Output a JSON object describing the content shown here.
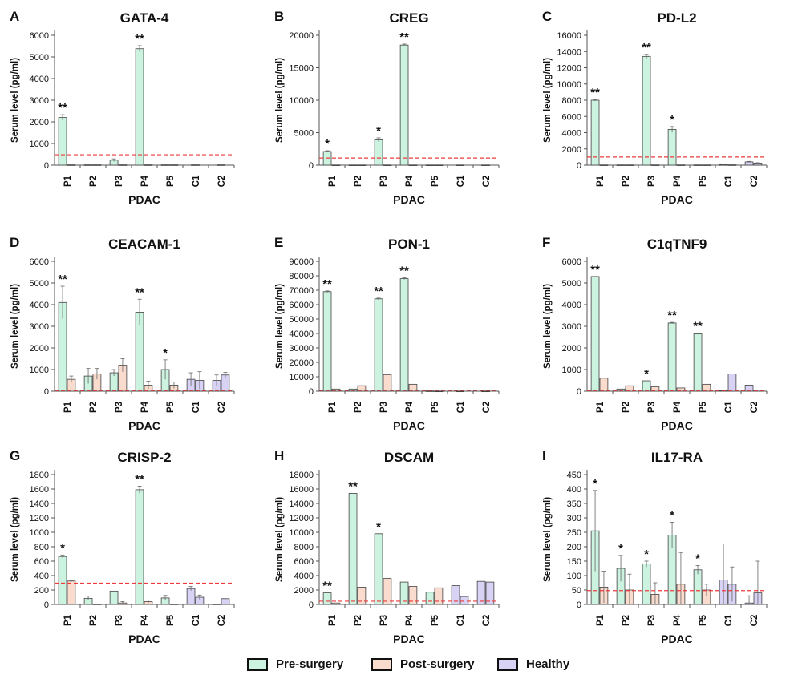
{
  "colors": {
    "pre": "#ccf2e0",
    "post": "#fadccf",
    "healthy": "#d8d2f4",
    "threshold": "#ee3b3b",
    "bar_edge": "#444444",
    "axis": "#555555"
  },
  "legend": {
    "pre_label": "Pre-surgery",
    "post_label": "Post-surgery",
    "healthy_label": "Healthy"
  },
  "chart_data": [
    {
      "type": "bar",
      "panel": "A",
      "title": "GATA-4",
      "ylabel": "Serum level (pg/ml)",
      "xlabel": "PDAC",
      "ylim": [
        0,
        6000
      ],
      "yticks": [
        0,
        1000,
        2000,
        3000,
        4000,
        5000,
        6000
      ],
      "threshold": 480,
      "categories": [
        "P1",
        "P2",
        "P3",
        "P4",
        "P5",
        "C1",
        "C2"
      ],
      "series": [
        {
          "group": "pre",
          "values": [
            2200,
            15,
            230,
            5380,
            15,
            null,
            null
          ],
          "errors": [
            130,
            0,
            60,
            140,
            0,
            null,
            null
          ]
        },
        {
          "group": "post",
          "values": [
            15,
            15,
            15,
            15,
            15,
            null,
            null
          ],
          "errors": [
            0,
            0,
            0,
            0,
            0,
            null,
            null
          ]
        },
        {
          "group": "healthy",
          "values": [
            null,
            null,
            null,
            null,
            null,
            15,
            15
          ],
          "errors": [
            null,
            null,
            null,
            null,
            null,
            0,
            0
          ]
        }
      ],
      "annotations": [
        {
          "category": "P1",
          "text": "**"
        },
        {
          "category": "P4",
          "text": "**"
        }
      ]
    },
    {
      "type": "bar",
      "panel": "B",
      "title": "CREG",
      "ylabel": "Serum level (pg/ml)",
      "xlabel": "PDAC",
      "ylim": [
        0,
        20000
      ],
      "yticks": [
        0,
        5000,
        10000,
        15000,
        20000
      ],
      "threshold": 1100,
      "categories": [
        "P1",
        "P2",
        "P3",
        "P4",
        "P5",
        "C1",
        "C2"
      ],
      "series": [
        {
          "group": "pre",
          "values": [
            2100,
            30,
            3900,
            18500,
            30,
            null,
            null
          ],
          "errors": [
            120,
            0,
            300,
            150,
            0,
            null,
            null
          ]
        },
        {
          "group": "post",
          "values": [
            30,
            30,
            30,
            30,
            30,
            null,
            null
          ],
          "errors": [
            0,
            0,
            0,
            0,
            0,
            null,
            null
          ]
        },
        {
          "group": "healthy",
          "values": [
            null,
            null,
            null,
            null,
            null,
            30,
            30
          ],
          "errors": [
            null,
            null,
            null,
            null,
            null,
            0,
            0
          ]
        }
      ],
      "annotations": [
        {
          "category": "P1",
          "text": "*"
        },
        {
          "category": "P3",
          "text": "*"
        },
        {
          "category": "P4",
          "text": "**"
        }
      ]
    },
    {
      "type": "bar",
      "panel": "C",
      "title": "PD-L2",
      "ylabel": "Serum level (pg/ml)",
      "xlabel": "PDAC",
      "ylim": [
        0,
        16000
      ],
      "yticks": [
        0,
        2000,
        4000,
        6000,
        8000,
        10000,
        12000,
        14000,
        16000
      ],
      "threshold": 1000,
      "categories": [
        "P1",
        "P2",
        "P3",
        "P4",
        "P5",
        "C1",
        "C2"
      ],
      "series": [
        {
          "group": "pre",
          "values": [
            8000,
            30,
            13400,
            4400,
            30,
            null,
            null
          ],
          "errors": [
            100,
            0,
            250,
            350,
            0,
            null,
            null
          ]
        },
        {
          "group": "post",
          "values": [
            30,
            30,
            30,
            30,
            30,
            null,
            null
          ],
          "errors": [
            0,
            0,
            0,
            0,
            0,
            null,
            null
          ]
        },
        {
          "group": "healthy",
          "values": [
            null,
            null,
            null,
            null,
            null,
            60,
            400
          ],
          "errors": [
            null,
            null,
            null,
            null,
            null,
            20,
            60
          ]
        },
        {
          "group": "healthy",
          "values": [
            null,
            null,
            null,
            null,
            null,
            40,
            250
          ],
          "errors": [
            null,
            null,
            null,
            null,
            null,
            15,
            50
          ]
        }
      ],
      "annotations": [
        {
          "category": "P1",
          "text": "**"
        },
        {
          "category": "P3",
          "text": "**"
        },
        {
          "category": "P4",
          "text": "*"
        }
      ]
    },
    {
      "type": "bar",
      "panel": "D",
      "title": "CEACAM-1",
      "ylabel": "Serum level (pg/ml)",
      "xlabel": "PDAC",
      "ylim": [
        0,
        6000
      ],
      "yticks": [
        0,
        1000,
        2000,
        3000,
        4000,
        5000,
        6000
      ],
      "threshold": 30,
      "categories": [
        "P1",
        "P2",
        "P3",
        "P4",
        "P5",
        "C1",
        "C2"
      ],
      "series": [
        {
          "group": "pre",
          "values": [
            4100,
            700,
            850,
            3650,
            1000,
            null,
            null
          ],
          "errors": [
            750,
            350,
            150,
            600,
            450,
            null,
            null
          ]
        },
        {
          "group": "post",
          "values": [
            550,
            800,
            1200,
            280,
            280,
            null,
            null
          ],
          "errors": [
            150,
            250,
            300,
            180,
            150,
            null,
            null
          ]
        },
        {
          "group": "healthy",
          "values": [
            null,
            null,
            null,
            null,
            null,
            550,
            500
          ],
          "errors": [
            null,
            null,
            null,
            null,
            null,
            300,
            250
          ]
        },
        {
          "group": "healthy",
          "values": [
            null,
            null,
            null,
            null,
            null,
            500,
            750
          ],
          "errors": [
            null,
            null,
            null,
            null,
            null,
            400,
            120
          ]
        }
      ],
      "annotations": [
        {
          "category": "P1",
          "text": "**"
        },
        {
          "category": "P4",
          "text": "**"
        },
        {
          "category": "P5",
          "text": "*"
        }
      ]
    },
    {
      "type": "bar",
      "panel": "E",
      "title": "PON-1",
      "ylabel": "Serum level (pg/ml)",
      "xlabel": "PDAC",
      "ylim": [
        0,
        90000
      ],
      "yticks": [
        0,
        10000,
        20000,
        30000,
        40000,
        50000,
        60000,
        70000,
        80000,
        90000
      ],
      "threshold": 600,
      "categories": [
        "P1",
        "P2",
        "P3",
        "P4",
        "P5",
        "C1",
        "C2"
      ],
      "series": [
        {
          "group": "pre",
          "values": [
            69000,
            1500,
            64000,
            78000,
            200,
            null,
            null
          ],
          "errors": [
            500,
            0,
            500,
            600,
            0,
            null,
            null
          ]
        },
        {
          "group": "post",
          "values": [
            1500,
            3800,
            11500,
            4800,
            100,
            null,
            null
          ],
          "errors": [
            0,
            0,
            0,
            0,
            0,
            null,
            null
          ]
        },
        {
          "group": "healthy",
          "values": [
            null,
            null,
            null,
            null,
            null,
            100,
            100
          ],
          "errors": [
            null,
            null,
            null,
            null,
            null,
            0,
            0
          ]
        }
      ],
      "annotations": [
        {
          "category": "P1",
          "text": "**"
        },
        {
          "category": "P3",
          "text": "**"
        },
        {
          "category": "P4",
          "text": "**"
        }
      ]
    },
    {
      "type": "bar",
      "panel": "F",
      "title": "C1qTNF9",
      "ylabel": "Serum level (pg/ml)",
      "xlabel": "PDAC",
      "ylim": [
        0,
        6000
      ],
      "yticks": [
        0,
        1000,
        2000,
        3000,
        4000,
        5000,
        6000
      ],
      "threshold": 30,
      "categories": [
        "P1",
        "P2",
        "P3",
        "P4",
        "P5",
        "C1",
        "C2"
      ],
      "series": [
        {
          "group": "pre",
          "values": [
            5300,
            100,
            480,
            3150,
            2650,
            null,
            null
          ],
          "errors": [
            0,
            0,
            0,
            30,
            30,
            null,
            null
          ]
        },
        {
          "group": "post",
          "values": [
            600,
            250,
            200,
            150,
            320,
            null,
            null
          ],
          "errors": [
            0,
            0,
            0,
            0,
            0,
            null,
            null
          ]
        },
        {
          "group": "healthy",
          "values": [
            null,
            null,
            null,
            null,
            null,
            30,
            280
          ],
          "errors": [
            null,
            null,
            null,
            null,
            null,
            0,
            0
          ]
        },
        {
          "group": "healthy",
          "values": [
            null,
            null,
            null,
            null,
            null,
            800,
            50
          ],
          "errors": [
            null,
            null,
            null,
            null,
            null,
            0,
            0
          ]
        }
      ],
      "annotations": [
        {
          "category": "P1",
          "text": "**"
        },
        {
          "category": "P3",
          "text": "*"
        },
        {
          "category": "P4",
          "text": "**"
        },
        {
          "category": "P5",
          "text": "**"
        }
      ]
    },
    {
      "type": "bar",
      "panel": "G",
      "title": "CRISP-2",
      "ylabel": "Serum level (pg/ml)",
      "xlabel": "PDAC",
      "ylim": [
        0,
        1800
      ],
      "yticks": [
        0,
        200,
        400,
        600,
        800,
        1000,
        1200,
        1400,
        1600,
        1800
      ],
      "threshold": 295,
      "categories": [
        "P1",
        "P2",
        "P3",
        "P4",
        "P5",
        "C1",
        "C2"
      ],
      "series": [
        {
          "group": "pre",
          "values": [
            665,
            85,
            185,
            1590,
            90,
            null,
            null
          ],
          "errors": [
            20,
            30,
            0,
            50,
            35,
            null,
            null
          ]
        },
        {
          "group": "post",
          "values": [
            325,
            5,
            20,
            40,
            5,
            null,
            null
          ],
          "errors": [
            10,
            0,
            20,
            20,
            0,
            null,
            null
          ]
        },
        {
          "group": "healthy",
          "values": [
            null,
            null,
            null,
            null,
            null,
            220,
            5
          ],
          "errors": [
            null,
            null,
            null,
            null,
            null,
            30,
            0
          ]
        },
        {
          "group": "healthy",
          "values": [
            null,
            null,
            null,
            null,
            null,
            100,
            80
          ],
          "errors": [
            null,
            null,
            null,
            null,
            null,
            30,
            0
          ]
        }
      ],
      "annotations": [
        {
          "category": "P1",
          "text": "*"
        },
        {
          "category": "P4",
          "text": "**"
        }
      ]
    },
    {
      "type": "bar",
      "panel": "H",
      "title": "DSCAM",
      "ylabel": "Serum level (pg/ml)",
      "xlabel": "PDAC",
      "ylim": [
        0,
        18000
      ],
      "yticks": [
        0,
        2000,
        4000,
        6000,
        8000,
        10000,
        12000,
        14000,
        16000,
        18000
      ],
      "threshold": 450,
      "categories": [
        "P1",
        "P2",
        "P3",
        "P4",
        "P5",
        "C1",
        "C2"
      ],
      "series": [
        {
          "group": "pre",
          "values": [
            1600,
            15400,
            9800,
            3100,
            1700,
            null,
            null
          ],
          "errors": [
            0,
            0,
            0,
            0,
            0,
            null,
            null
          ]
        },
        {
          "group": "post",
          "values": [
            200,
            2400,
            3600,
            2500,
            2300,
            null,
            null
          ],
          "errors": [
            0,
            0,
            0,
            0,
            0,
            null,
            null
          ]
        },
        {
          "group": "healthy",
          "values": [
            null,
            null,
            null,
            null,
            null,
            2600,
            3200
          ],
          "errors": [
            null,
            null,
            null,
            null,
            null,
            0,
            0
          ]
        },
        {
          "group": "healthy",
          "values": [
            null,
            null,
            null,
            null,
            null,
            1100,
            3100
          ],
          "errors": [
            null,
            null,
            null,
            null,
            null,
            0,
            0
          ]
        }
      ],
      "annotations": [
        {
          "category": "P1",
          "text": "**"
        },
        {
          "category": "P2",
          "text": "**"
        },
        {
          "category": "P3",
          "text": "*"
        }
      ]
    },
    {
      "type": "bar",
      "panel": "I",
      "title": "IL17-RA",
      "ylabel": "Serum level (pg/ml)",
      "xlabel": "PDAC",
      "ylim": [
        0,
        450
      ],
      "yticks": [
        0,
        50,
        100,
        150,
        200,
        250,
        300,
        350,
        400,
        450
      ],
      "threshold": 48,
      "categories": [
        "P1",
        "P2",
        "P3",
        "P4",
        "P5",
        "C1",
        "C2"
      ],
      "series": [
        {
          "group": "pre",
          "values": [
            255,
            125,
            140,
            240,
            120,
            null,
            null
          ],
          "errors": [
            140,
            45,
            10,
            45,
            15,
            null,
            null
          ]
        },
        {
          "group": "post",
          "values": [
            60,
            50,
            35,
            70,
            50,
            null,
            null
          ],
          "errors": [
            55,
            55,
            40,
            110,
            20,
            null,
            null
          ]
        },
        {
          "group": "healthy",
          "values": [
            null,
            null,
            null,
            null,
            null,
            85,
            5
          ],
          "errors": [
            null,
            null,
            null,
            null,
            null,
            125,
            25
          ]
        },
        {
          "group": "healthy",
          "values": [
            null,
            null,
            null,
            null,
            null,
            70,
            40
          ],
          "errors": [
            null,
            null,
            null,
            null,
            null,
            60,
            110
          ]
        }
      ],
      "annotations": [
        {
          "category": "P1",
          "text": "*"
        },
        {
          "category": "P2",
          "text": "*"
        },
        {
          "category": "P3",
          "text": "*"
        },
        {
          "category": "P4",
          "text": "*"
        },
        {
          "category": "P5",
          "text": "*"
        }
      ]
    }
  ]
}
